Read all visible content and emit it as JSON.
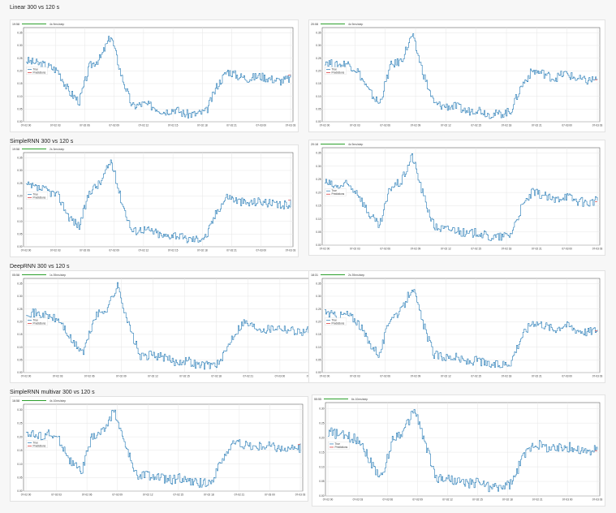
{
  "colors": {
    "true_line": "#1f77b4",
    "pred_line": "#d62728",
    "toolbar_bar": "#2ca02c",
    "grid": "#e6e6e6"
  },
  "sections": [
    {
      "title": "Linear 300 vs 120 s"
    },
    {
      "title": "SimpleRNN 300 vs 120 s"
    },
    {
      "title": "DeepRNN 300 vs 120 s"
    },
    {
      "title": "SimpleRNN multivar 300 vs 120 s"
    }
  ],
  "legend": {
    "true_label": "True",
    "pred_label": "Predictions"
  },
  "chart_data": [
    {
      "type": "line",
      "section": 0,
      "panel": "left",
      "corner": "19:58",
      "steps": "4s 9ms/step",
      "yticks": [
        "0.00",
        "0.05",
        "0.10",
        "0.15",
        "0.20",
        "0.25",
        "0.30",
        "0.35"
      ],
      "xticks": [
        "07-02 00",
        "07-02 03",
        "07-02 06",
        "07-02 09",
        "07-02 12",
        "07-02 15",
        "07-02 18",
        "07-02 21",
        "07-03 00",
        "07-03 03"
      ],
      "ylim": [
        0,
        0.37
      ],
      "series": [
        {
          "name": "True",
          "x": [
            0,
            0.04,
            0.08,
            0.12,
            0.16,
            0.2,
            0.24,
            0.28,
            0.32,
            0.36,
            0.4,
            0.44,
            0.48,
            0.52,
            0.56,
            0.6,
            0.64,
            0.68,
            0.72,
            0.76,
            0.8,
            0.84,
            0.88,
            0.92,
            0.96,
            1
          ],
          "y": [
            0.24,
            0.23,
            0.22,
            0.2,
            0.12,
            0.08,
            0.22,
            0.25,
            0.34,
            0.18,
            0.06,
            0.07,
            0.06,
            0.04,
            0.05,
            0.03,
            0.03,
            0.04,
            0.14,
            0.2,
            0.18,
            0.17,
            0.18,
            0.17,
            0.16,
            0.17
          ]
        }
      ]
    },
    {
      "type": "line",
      "section": 0,
      "panel": "right",
      "corner": "20:08",
      "steps": "4s 9ms/step",
      "yticks": [
        "0.00",
        "0.05",
        "0.10",
        "0.15",
        "0.20",
        "0.25",
        "0.30",
        "0.35"
      ],
      "xticks": [
        "07-02 00",
        "07-02 03",
        "07-02 06",
        "07-02 09",
        "07-02 12",
        "07-02 15",
        "07-02 18",
        "07-02 21",
        "07-03 00",
        "07-03 03"
      ],
      "ylim": [
        0,
        0.37
      ],
      "series": [
        {
          "name": "True",
          "x": [
            0,
            0.04,
            0.08,
            0.12,
            0.16,
            0.2,
            0.24,
            0.28,
            0.32,
            0.36,
            0.4,
            0.44,
            0.48,
            0.52,
            0.56,
            0.6,
            0.64,
            0.68,
            0.72,
            0.76,
            0.8,
            0.84,
            0.88,
            0.92,
            0.96,
            1
          ],
          "y": [
            0.24,
            0.22,
            0.23,
            0.2,
            0.12,
            0.07,
            0.22,
            0.24,
            0.34,
            0.19,
            0.07,
            0.06,
            0.06,
            0.04,
            0.05,
            0.03,
            0.03,
            0.04,
            0.14,
            0.2,
            0.19,
            0.17,
            0.19,
            0.17,
            0.16,
            0.17
          ]
        }
      ]
    },
    {
      "type": "line",
      "section": 1,
      "panel": "left",
      "corner": "19:58",
      "steps": "2s 3ms/step",
      "yticks": [
        "0.00",
        "0.05",
        "0.10",
        "0.15",
        "0.20",
        "0.25",
        "0.30",
        "0.35"
      ],
      "xticks": [
        "07-02 00",
        "07-02 03",
        "07-02 06",
        "07-02 09",
        "07-02 12",
        "07-02 15",
        "07-02 18",
        "07-02 21",
        "07-03 00",
        "07-03 03"
      ],
      "ylim": [
        0,
        0.37
      ],
      "series": [
        {
          "name": "True",
          "x": [
            0,
            0.04,
            0.08,
            0.12,
            0.16,
            0.2,
            0.24,
            0.28,
            0.32,
            0.36,
            0.4,
            0.44,
            0.48,
            0.52,
            0.56,
            0.6,
            0.64,
            0.68,
            0.72,
            0.76,
            0.8,
            0.84,
            0.88,
            0.92,
            0.96,
            1
          ],
          "y": [
            0.24,
            0.23,
            0.22,
            0.2,
            0.12,
            0.08,
            0.22,
            0.25,
            0.34,
            0.18,
            0.06,
            0.07,
            0.06,
            0.04,
            0.05,
            0.03,
            0.03,
            0.04,
            0.14,
            0.2,
            0.18,
            0.17,
            0.18,
            0.17,
            0.16,
            0.17
          ]
        }
      ]
    },
    {
      "type": "line",
      "section": 1,
      "panel": "right",
      "corner": "20:18",
      "steps": "4s 9ms/step",
      "yticks": [
        "0.00",
        "0.05",
        "0.10",
        "0.15",
        "0.20",
        "0.25",
        "0.30",
        "0.35"
      ],
      "xticks": [
        "07-02 00",
        "07-02 03",
        "07-02 06",
        "07-02 09",
        "07-02 12",
        "07-02 15",
        "07-02 18",
        "07-02 21",
        "07-03 00",
        "07-03 03"
      ],
      "ylim": [
        0,
        0.37
      ],
      "series": [
        {
          "name": "True",
          "x": [
            0,
            0.04,
            0.08,
            0.12,
            0.16,
            0.2,
            0.24,
            0.28,
            0.32,
            0.36,
            0.4,
            0.44,
            0.48,
            0.52,
            0.56,
            0.6,
            0.64,
            0.68,
            0.72,
            0.76,
            0.8,
            0.84,
            0.88,
            0.92,
            0.96,
            1
          ],
          "y": [
            0.24,
            0.22,
            0.23,
            0.2,
            0.12,
            0.07,
            0.22,
            0.24,
            0.34,
            0.19,
            0.07,
            0.06,
            0.06,
            0.04,
            0.05,
            0.03,
            0.03,
            0.04,
            0.14,
            0.2,
            0.19,
            0.17,
            0.19,
            0.17,
            0.16,
            0.17
          ]
        }
      ]
    },
    {
      "type": "line",
      "section": 2,
      "panel": "left",
      "corner": "05:58",
      "steps": "1s 39ms/step",
      "yticks": [
        "0.00",
        "0.05",
        "0.10",
        "0.15",
        "0.20",
        "0.25",
        "0.30",
        "0.35"
      ],
      "xticks": [
        "07-02 00",
        "07-02 03",
        "07-02 06",
        "07-02 09",
        "07-02 12",
        "07-02 15",
        "07-02 18",
        "07-02 21",
        "07-03 00",
        "07-03 03"
      ],
      "ylim": [
        0,
        0.37
      ],
      "series": [
        {
          "name": "True",
          "x": [
            0,
            0.04,
            0.08,
            0.12,
            0.16,
            0.2,
            0.24,
            0.28,
            0.32,
            0.36,
            0.4,
            0.44,
            0.48,
            0.52,
            0.56,
            0.6,
            0.64,
            0.68,
            0.72,
            0.76,
            0.8,
            0.84,
            0.88,
            0.92,
            0.96,
            1
          ],
          "y": [
            0.24,
            0.23,
            0.22,
            0.2,
            0.12,
            0.08,
            0.22,
            0.25,
            0.34,
            0.18,
            0.06,
            0.07,
            0.06,
            0.04,
            0.05,
            0.03,
            0.03,
            0.04,
            0.14,
            0.2,
            0.18,
            0.17,
            0.18,
            0.17,
            0.16,
            0.17
          ]
        }
      ]
    },
    {
      "type": "line",
      "section": 2,
      "panel": "right",
      "corner": "18:31",
      "steps": "2s 39ms/step",
      "yticks": [
        "0.00",
        "0.05",
        "0.10",
        "0.15",
        "0.20",
        "0.25",
        "0.30",
        "0.35"
      ],
      "xticks": [
        "07-02 00",
        "07-02 03",
        "07-02 06",
        "07-02 09",
        "07-02 12",
        "07-02 15",
        "07-02 18",
        "07-02 21",
        "07-03 00",
        "07-03 03"
      ],
      "ylim": [
        0,
        0.37
      ],
      "series": [
        {
          "name": "True",
          "x": [
            0,
            0.04,
            0.08,
            0.12,
            0.16,
            0.2,
            0.24,
            0.28,
            0.32,
            0.36,
            0.4,
            0.44,
            0.48,
            0.52,
            0.56,
            0.6,
            0.64,
            0.68,
            0.72,
            0.76,
            0.8,
            0.84,
            0.88,
            0.92,
            0.96,
            1
          ],
          "y": [
            0.24,
            0.22,
            0.23,
            0.2,
            0.12,
            0.07,
            0.22,
            0.24,
            0.34,
            0.19,
            0.07,
            0.06,
            0.06,
            0.04,
            0.05,
            0.03,
            0.03,
            0.04,
            0.14,
            0.2,
            0.19,
            0.17,
            0.19,
            0.17,
            0.16,
            0.17
          ]
        }
      ]
    },
    {
      "type": "line",
      "section": 3,
      "panel": "left",
      "corner": "16:58",
      "steps": "4s 10ms/step",
      "yticks": [
        "0.00",
        "0.05",
        "0.10",
        "0.15",
        "0.20",
        "0.25",
        "0.30"
      ],
      "xticks": [
        "07-02 00",
        "07-02 03",
        "07-02 06",
        "07-02 09",
        "07-02 12",
        "07-02 15",
        "07-02 18",
        "07-02 21",
        "07-03 00",
        "07-03 03"
      ],
      "ylim": [
        0,
        0.32
      ],
      "series": [
        {
          "name": "True",
          "x": [
            0,
            0.04,
            0.08,
            0.12,
            0.16,
            0.2,
            0.24,
            0.28,
            0.32,
            0.36,
            0.4,
            0.44,
            0.48,
            0.52,
            0.56,
            0.6,
            0.64,
            0.68,
            0.72,
            0.76,
            0.8,
            0.84,
            0.88,
            0.92,
            0.96,
            1
          ],
          "y": [
            0.22,
            0.2,
            0.21,
            0.19,
            0.11,
            0.07,
            0.2,
            0.22,
            0.3,
            0.17,
            0.06,
            0.06,
            0.05,
            0.04,
            0.05,
            0.03,
            0.03,
            0.04,
            0.13,
            0.18,
            0.17,
            0.16,
            0.17,
            0.16,
            0.15,
            0.16
          ]
        }
      ]
    },
    {
      "type": "line",
      "section": 3,
      "panel": "right",
      "corner": "55:55",
      "steps": "6s 10ms/step",
      "yticks": [
        "0.00",
        "0.05",
        "0.10",
        "0.15",
        "0.20",
        "0.25",
        "0.30"
      ],
      "xticks": [
        "07-02 00",
        "07-02 03",
        "07-02 06",
        "07-02 09",
        "07-02 12",
        "07-02 15",
        "07-02 18",
        "07-02 21",
        "07-03 00",
        "07-03 03"
      ],
      "ylim": [
        0,
        0.32
      ],
      "series": [
        {
          "name": "True",
          "x": [
            0,
            0.04,
            0.08,
            0.12,
            0.16,
            0.2,
            0.24,
            0.28,
            0.32,
            0.36,
            0.4,
            0.44,
            0.48,
            0.52,
            0.56,
            0.6,
            0.64,
            0.68,
            0.72,
            0.76,
            0.8,
            0.84,
            0.88,
            0.92,
            0.96,
            1
          ],
          "y": [
            0.22,
            0.21,
            0.2,
            0.19,
            0.11,
            0.06,
            0.2,
            0.22,
            0.3,
            0.18,
            0.06,
            0.06,
            0.05,
            0.04,
            0.05,
            0.03,
            0.03,
            0.04,
            0.13,
            0.18,
            0.17,
            0.16,
            0.17,
            0.16,
            0.15,
            0.16
          ]
        }
      ]
    }
  ]
}
